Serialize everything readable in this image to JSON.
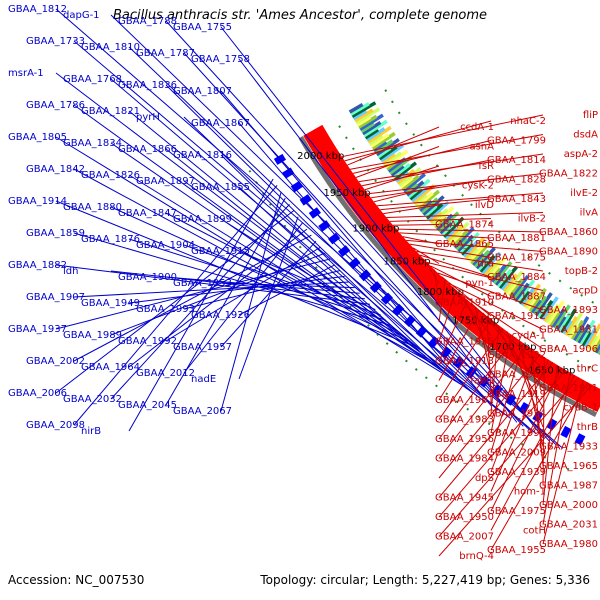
{
  "title": "Bacillus anthracis str. 'Ames Ancestor', complete genome",
  "footer": {
    "accession": "Accession: NC_007530",
    "summary": "Topology: circular; Length: 5,227,419 bp; Genes: 5,336"
  },
  "colors": {
    "forward_label": "#0000cc",
    "reverse_label": "#cc0000",
    "backbone": "#707070",
    "forward_cds": "#0000ff",
    "reverse_cds": "#ff0000",
    "dots": "#2a8a2a"
  },
  "scale_labels": [
    "1650 kbp",
    "1700 kbp",
    "1750 kbp",
    "1800 kbp",
    "1850 kbp",
    "1900 kbp",
    "1950 kbp",
    "2000 kbp"
  ],
  "left_labels": [
    "GBAA_1812",
    "dapG-1",
    "GBAA_1788",
    "GBAA_1755",
    "GBAA_1733",
    "GBAA_1810",
    "GBAA_1787",
    "GBAA_1758",
    "msrA-1",
    "GBAA_1768",
    "GBAA_1836",
    "GBAA_1807",
    "GBAA_1786",
    "GBAA_1821",
    "pyrH",
    "GBAA_1867",
    "GBAA_1805",
    "GBAA_1834",
    "GBAA_1866",
    "GBAA_1816",
    "GBAA_1842",
    "GBAA_1826",
    "GBAA_1897",
    "GBAA_1855",
    "GBAA_1914",
    "GBAA_1880",
    "GBAA_1847",
    "GBAA_1899",
    "GBAA_1859",
    "GBAA_1876",
    "GBAA_1904",
    "GBAA_1915",
    "GBAA_1882",
    "ldh",
    "GBAA_1900",
    "GBAA_1953",
    "GBAA_1907",
    "GBAA_1949",
    "GBAA_1993",
    "GBAA_1926",
    "GBAA_1937",
    "GBAA_1989",
    "GBAA_1992",
    "GBAA_1957",
    "GBAA_2002",
    "GBAA_1964",
    "GBAA_2012",
    "nadE",
    "GBAA_2006",
    "GBAA_2032",
    "GBAA_2045",
    "GBAA_2067",
    "GBAA_2098",
    "nirB"
  ],
  "right_labels": [
    "fliP",
    "nhaC-2",
    "ccdA-1",
    "dsdA",
    "GBAA_1799",
    "asnA",
    "aspA-2",
    "GBAA_1814",
    "fsR",
    "GBAA_1822",
    "GBAA_1828",
    "cysK-2",
    "ilvE-2",
    "GBAA_1843",
    "ilvD",
    "ilvA",
    "ilvB-2",
    "GBAA_1874",
    "GBAA_1860",
    "GBAA_1881",
    "GBAA_1865",
    "GBAA_1890",
    "GBAA_1875",
    "dra",
    "topB-2",
    "GBAA_1884",
    "pyn-1",
    "acpD",
    "GBAA_1887",
    "GBAA_1910",
    "GBAA_1893",
    "GBAA_1912",
    "cdd-1",
    "GBAA_1931",
    "cydA-1",
    "GBAA_1925",
    "GBAA_1906",
    "GBAA_1932",
    "GBAA_1913",
    "thrC",
    "GBAA_1952",
    "fabG",
    "GBAA_1941",
    "GBAA_1919",
    "GBAA_1961",
    "cydB-1",
    "GBAA_1924",
    "GBAA_1983",
    "thrB",
    "GBAA_1990",
    "GBAA_1956",
    "GBAA_1933",
    "GBAA_2009",
    "GBAA_1984",
    "GBAA_1965",
    "GBAA_1939",
    "dpS",
    "GBAA_1987",
    "hom-1",
    "GBAA_1945",
    "GBAA_2000",
    "GBAA_1975",
    "GBAA_1950",
    "GBAA_2031",
    "cotH",
    "GBAA_2007",
    "GBAA_1980",
    "GBAA_1955",
    "brnQ-4",
    "ogt-1"
  ]
}
